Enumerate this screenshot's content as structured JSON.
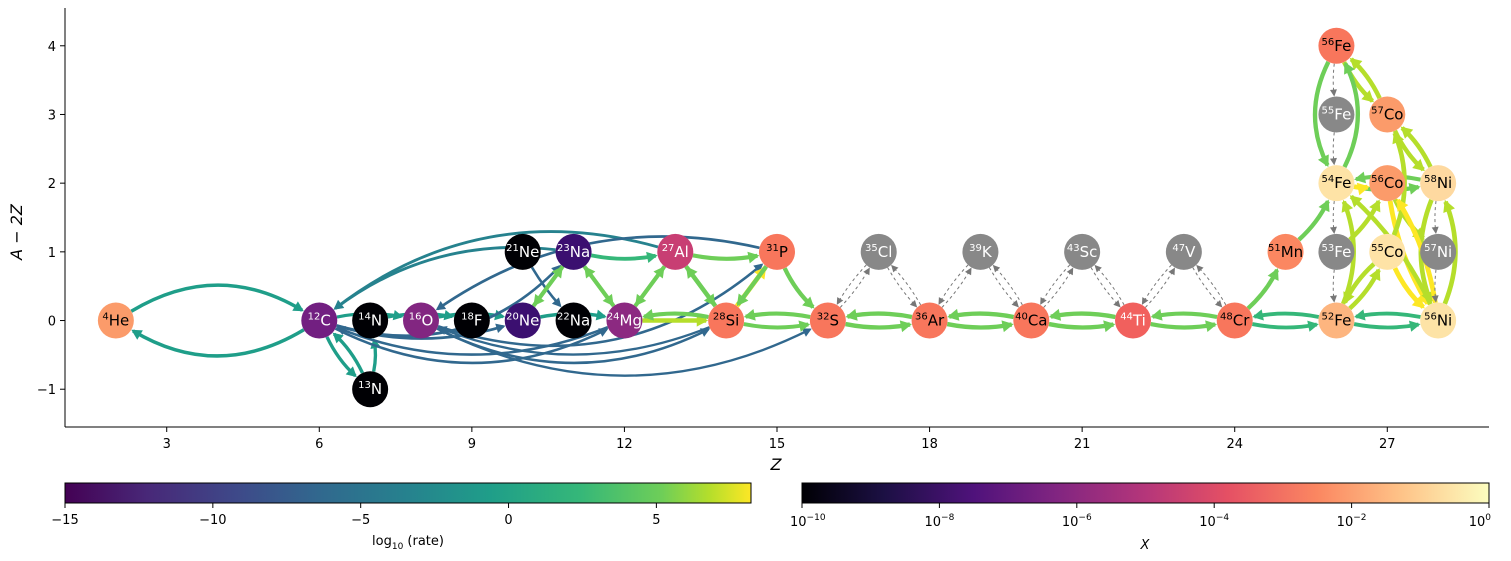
{
  "chart_data": {
    "type": "network",
    "xlabel": "Z",
    "ylabel": "A − 2Z",
    "xlim": [
      1.0,
      29.0
    ],
    "ylim": [
      -1.55,
      4.55
    ],
    "xticks": [
      3,
      6,
      9,
      12,
      15,
      18,
      21,
      24,
      27
    ],
    "yticks": [
      -1,
      0,
      1,
      2,
      3,
      4
    ],
    "nodes": [
      {
        "id": "he4",
        "mass": "4",
        "sym": "He",
        "z": 2,
        "n": 0,
        "color": "#fb9b6a",
        "text": "#000000"
      },
      {
        "id": "c12",
        "mass": "12",
        "sym": "C",
        "z": 6,
        "n": 0,
        "color": "#721f81",
        "text": "#ffffff"
      },
      {
        "id": "n13",
        "mass": "13",
        "sym": "N",
        "z": 7,
        "n": -1,
        "color": "#000004",
        "text": "#ffffff"
      },
      {
        "id": "n14",
        "mass": "14",
        "sym": "N",
        "z": 7,
        "n": 0,
        "color": "#000004",
        "text": "#ffffff"
      },
      {
        "id": "o16",
        "mass": "16",
        "sym": "O",
        "z": 8,
        "n": 0,
        "color": "#822681",
        "text": "#ffffff"
      },
      {
        "id": "f18",
        "mass": "18",
        "sym": "F",
        "z": 9,
        "n": 0,
        "color": "#000004",
        "text": "#ffffff"
      },
      {
        "id": "ne20",
        "mass": "20",
        "sym": "Ne",
        "z": 10,
        "n": 0,
        "color": "#3b0f70",
        "text": "#ffffff"
      },
      {
        "id": "ne21",
        "mass": "21",
        "sym": "Ne",
        "z": 10,
        "n": 1,
        "color": "#000004",
        "text": "#ffffff"
      },
      {
        "id": "na22",
        "mass": "22",
        "sym": "Na",
        "z": 11,
        "n": 0,
        "color": "#000004",
        "text": "#ffffff"
      },
      {
        "id": "na23",
        "mass": "23",
        "sym": "Na",
        "z": 11,
        "n": 1,
        "color": "#3b0f70",
        "text": "#ffffff"
      },
      {
        "id": "mg24",
        "mass": "24",
        "sym": "Mg",
        "z": 12,
        "n": 0,
        "color": "#8c2981",
        "text": "#ffffff"
      },
      {
        "id": "al27",
        "mass": "27",
        "sym": "Al",
        "z": 13,
        "n": 1,
        "color": "#c83e73",
        "text": "#ffffff"
      },
      {
        "id": "si28",
        "mass": "28",
        "sym": "Si",
        "z": 14,
        "n": 0,
        "color": "#f8765c",
        "text": "#000000"
      },
      {
        "id": "p31",
        "mass": "31",
        "sym": "P",
        "z": 15,
        "n": 1,
        "color": "#f8765c",
        "text": "#000000"
      },
      {
        "id": "s32",
        "mass": "32",
        "sym": "S",
        "z": 16,
        "n": 0,
        "color": "#f8765c",
        "text": "#000000"
      },
      {
        "id": "cl35",
        "mass": "35",
        "sym": "Cl",
        "z": 17,
        "n": 1,
        "color": "#888888",
        "text": "#ffffff"
      },
      {
        "id": "ar36",
        "mass": "36",
        "sym": "Ar",
        "z": 18,
        "n": 0,
        "color": "#f8765c",
        "text": "#000000"
      },
      {
        "id": "k39",
        "mass": "39",
        "sym": "K",
        "z": 19,
        "n": 1,
        "color": "#888888",
        "text": "#ffffff"
      },
      {
        "id": "ca40",
        "mass": "40",
        "sym": "Ca",
        "z": 20,
        "n": 0,
        "color": "#f8765c",
        "text": "#000000"
      },
      {
        "id": "sc43",
        "mass": "43",
        "sym": "Sc",
        "z": 21,
        "n": 1,
        "color": "#888888",
        "text": "#ffffff"
      },
      {
        "id": "ti44",
        "mass": "44",
        "sym": "Ti",
        "z": 22,
        "n": 0,
        "color": "#f1605d",
        "text": "#ffffff"
      },
      {
        "id": "v47",
        "mass": "47",
        "sym": "V",
        "z": 23,
        "n": 1,
        "color": "#888888",
        "text": "#ffffff"
      },
      {
        "id": "cr48",
        "mass": "48",
        "sym": "Cr",
        "z": 24,
        "n": 0,
        "color": "#f8765c",
        "text": "#000000"
      },
      {
        "id": "mn51",
        "mass": "51",
        "sym": "Mn",
        "z": 25,
        "n": 1,
        "color": "#fb8761",
        "text": "#000000"
      },
      {
        "id": "fe52",
        "mass": "52",
        "sym": "Fe",
        "z": 26,
        "n": 0,
        "color": "#fdb57f",
        "text": "#000000"
      },
      {
        "id": "fe53",
        "mass": "53",
        "sym": "Fe",
        "z": 26,
        "n": 1,
        "color": "#888888",
        "text": "#ffffff"
      },
      {
        "id": "fe54",
        "mass": "54",
        "sym": "Fe",
        "z": 26,
        "n": 2,
        "color": "#fee3a6",
        "text": "#000000"
      },
      {
        "id": "fe55",
        "mass": "55",
        "sym": "Fe",
        "z": 26,
        "n": 3,
        "color": "#888888",
        "text": "#ffffff"
      },
      {
        "id": "fe56",
        "mass": "56",
        "sym": "Fe",
        "z": 26,
        "n": 4,
        "color": "#f8765c",
        "text": "#000000"
      },
      {
        "id": "co55",
        "mass": "55",
        "sym": "Co",
        "z": 27,
        "n": 1,
        "color": "#fee3a6",
        "text": "#000000"
      },
      {
        "id": "co56",
        "mass": "56",
        "sym": "Co",
        "z": 27,
        "n": 2,
        "color": "#fb9b6a",
        "text": "#000000"
      },
      {
        "id": "co57",
        "mass": "57",
        "sym": "Co",
        "z": 27,
        "n": 3,
        "color": "#fb9b6a",
        "text": "#000000"
      },
      {
        "id": "ni56",
        "mass": "56",
        "sym": "Ni",
        "z": 28,
        "n": 0,
        "color": "#fde3a6",
        "text": "#000000"
      },
      {
        "id": "ni57",
        "mass": "57",
        "sym": "Ni",
        "z": 28,
        "n": 1,
        "color": "#888888",
        "text": "#ffffff"
      },
      {
        "id": "ni58",
        "mass": "58",
        "sym": "Ni",
        "z": 28,
        "n": 2,
        "color": "#fed9a0",
        "text": "#000000"
      }
    ],
    "edges": [
      {
        "from": "he4",
        "to": "c12",
        "rate": -1,
        "curve": -0.3
      },
      {
        "from": "c12",
        "to": "he4",
        "rate": -1,
        "curve": -0.3
      },
      {
        "from": "c12",
        "to": "n13",
        "rate": -1.5,
        "curve": 0.1
      },
      {
        "from": "n13",
        "to": "c12",
        "rate": -1.5,
        "curve": 0.1
      },
      {
        "from": "n13",
        "to": "n14",
        "rate": -2,
        "curve": 0.1
      },
      {
        "from": "c12",
        "to": "o16",
        "rate": -3,
        "curve": -0.1
      },
      {
        "from": "n14",
        "to": "f18",
        "rate": -3,
        "curve": -0.1
      },
      {
        "from": "o16",
        "to": "ne20",
        "rate": -2,
        "curve": -0.1
      },
      {
        "from": "c12",
        "to": "ne20",
        "rate": -6,
        "curve": 0.15
      },
      {
        "from": "c12",
        "to": "na23",
        "rate": -6,
        "curve": 0.3
      },
      {
        "from": "c12",
        "to": "mg24",
        "rate": -7,
        "curve": 0.25
      },
      {
        "from": "o16",
        "to": "si28",
        "rate": -7,
        "curve": 0.25
      },
      {
        "from": "o16",
        "to": "p31",
        "rate": -7,
        "curve": 0.28
      },
      {
        "from": "o16",
        "to": "s32",
        "rate": -8,
        "curve": 0.25
      },
      {
        "from": "na23",
        "to": "c12",
        "rate": -5,
        "curve": 0.2
      },
      {
        "from": "al27",
        "to": "c12",
        "rate": -5,
        "curve": 0.25
      },
      {
        "from": "p31",
        "to": "o16",
        "rate": -6,
        "curve": 0.22
      },
      {
        "from": "mg24",
        "to": "c12",
        "rate": -7,
        "curve": -0.2
      },
      {
        "from": "si28",
        "to": "o16",
        "rate": -8,
        "curve": -0.2
      },
      {
        "from": "ne21",
        "to": "na22",
        "rate": -7,
        "curve": 0.05
      },
      {
        "from": "ne20",
        "to": "na23",
        "rate": 2,
        "curve": 0.0
      },
      {
        "from": "na23",
        "to": "ne20",
        "rate": 2,
        "curve": 0.0
      },
      {
        "from": "ne20",
        "to": "mg24",
        "rate": -1,
        "curve": -0.1
      },
      {
        "from": "na23",
        "to": "mg24",
        "rate": 2,
        "curve": 0.0
      },
      {
        "from": "mg24",
        "to": "na23",
        "rate": 2,
        "curve": 0.0
      },
      {
        "from": "na23",
        "to": "al27",
        "rate": 1,
        "curve": 0.1
      },
      {
        "from": "mg24",
        "to": "al27",
        "rate": 2,
        "curve": 0.0
      },
      {
        "from": "al27",
        "to": "mg24",
        "rate": 2,
        "curve": 0.0
      },
      {
        "from": "mg24",
        "to": "si28",
        "rate": 5,
        "curve": 0.0
      },
      {
        "from": "si28",
        "to": "mg24",
        "rate": 3,
        "curve": 0.1
      },
      {
        "from": "al27",
        "to": "si28",
        "rate": 4,
        "curve": 0.0
      },
      {
        "from": "si28",
        "to": "al27",
        "rate": 4,
        "curve": 0.0
      },
      {
        "from": "al27",
        "to": "p31",
        "rate": 3,
        "curve": 0.1
      },
      {
        "from": "si28",
        "to": "p31",
        "rate": 7,
        "curve": 0.0
      },
      {
        "from": "p31",
        "to": "si28",
        "rate": 4,
        "curve": 0.0
      },
      {
        "from": "si28",
        "to": "s32",
        "rate": 2,
        "curve": 0.1
      },
      {
        "from": "s32",
        "to": "si28",
        "rate": 3,
        "curve": 0.1
      },
      {
        "from": "p31",
        "to": "s32",
        "rate": 4,
        "curve": 0.1
      },
      {
        "from": "s32",
        "to": "ar36",
        "rate": 4,
        "curve": 0.1
      },
      {
        "from": "ar36",
        "to": "s32",
        "rate": 4,
        "curve": 0.1
      },
      {
        "from": "ar36",
        "to": "ca40",
        "rate": 4,
        "curve": 0.1
      },
      {
        "from": "ca40",
        "to": "ar36",
        "rate": 4,
        "curve": 0.1
      },
      {
        "from": "ca40",
        "to": "ti44",
        "rate": 4,
        "curve": 0.1
      },
      {
        "from": "ti44",
        "to": "ca40",
        "rate": 4,
        "curve": 0.1
      },
      {
        "from": "ti44",
        "to": "cr48",
        "rate": 3,
        "curve": 0.1
      },
      {
        "from": "cr48",
        "to": "ti44",
        "rate": 3,
        "curve": 0.1
      },
      {
        "from": "cr48",
        "to": "fe52",
        "rate": 1,
        "curve": 0.1
      },
      {
        "from": "fe52",
        "to": "cr48",
        "rate": 1,
        "curve": 0.1
      },
      {
        "from": "fe52",
        "to": "ni56",
        "rate": 1,
        "curve": 0.1
      },
      {
        "from": "ni56",
        "to": "fe52",
        "rate": 1,
        "curve": 0.1
      },
      {
        "from": "cr48",
        "to": "mn51",
        "rate": 4,
        "curve": 0.1
      },
      {
        "from": "mn51",
        "to": "fe54",
        "rate": 4,
        "curve": 0.1
      },
      {
        "from": "fe52",
        "to": "co55",
        "rate": 5,
        "curve": 0.1
      },
      {
        "from": "co55",
        "to": "fe52",
        "rate": 5,
        "curve": 0.1
      },
      {
        "from": "fe54",
        "to": "ni58",
        "rate": 3,
        "curve": 0.1
      },
      {
        "from": "ni58",
        "to": "fe54",
        "rate": 3,
        "curve": 0.1
      },
      {
        "from": "fe54",
        "to": "co56",
        "rate": 7,
        "curve": 0.1
      },
      {
        "from": "co56",
        "to": "ni56",
        "rate": 7,
        "curve": 0.1
      },
      {
        "from": "co55",
        "to": "ni56",
        "rate": 7,
        "curve": 0.1
      },
      {
        "from": "fe56",
        "to": "co57",
        "rate": 5,
        "curve": 0.1
      },
      {
        "from": "co57",
        "to": "fe56",
        "rate": 5,
        "curve": 0.1
      },
      {
        "from": "co57",
        "to": "ni58",
        "rate": 5,
        "curve": 0.1
      },
      {
        "from": "ni58",
        "to": "co57",
        "rate": 5,
        "curve": 0.1
      },
      {
        "from": "fe53",
        "to": "co56",
        "rate": 5,
        "curve": 0.1
      },
      {
        "from": "co56",
        "to": "ni57",
        "rate": 6,
        "curve": 0.1
      },
      {
        "from": "ni56",
        "to": "fe54",
        "rate": 5,
        "curve": 0.1
      },
      {
        "from": "fe52",
        "to": "fe54",
        "rate": 5,
        "curve": 0.2
      },
      {
        "from": "fe54",
        "to": "fe56",
        "rate": 4,
        "curve": 0.25
      },
      {
        "from": "fe56",
        "to": "fe54",
        "rate": 4,
        "curve": 0.25
      },
      {
        "from": "ni56",
        "to": "ni58",
        "rate": 6,
        "curve": 0.2
      },
      {
        "from": "ni58",
        "to": "ni56",
        "rate": 6,
        "curve": 0.2
      },
      {
        "from": "co55",
        "to": "co57",
        "rate": 6,
        "curve": 0.2
      },
      {
        "from": "ni56",
        "to": "co56",
        "rate": 7,
        "curve": 0.1
      }
    ],
    "weak_edges": [
      {
        "from": "cl35",
        "to": "s32"
      },
      {
        "from": "s32",
        "to": "cl35"
      },
      {
        "from": "cl35",
        "to": "ar36"
      },
      {
        "from": "ar36",
        "to": "cl35"
      },
      {
        "from": "k39",
        "to": "ar36"
      },
      {
        "from": "ar36",
        "to": "k39"
      },
      {
        "from": "k39",
        "to": "ca40"
      },
      {
        "from": "ca40",
        "to": "k39"
      },
      {
        "from": "sc43",
        "to": "ca40"
      },
      {
        "from": "ca40",
        "to": "sc43"
      },
      {
        "from": "sc43",
        "to": "ti44"
      },
      {
        "from": "ti44",
        "to": "sc43"
      },
      {
        "from": "v47",
        "to": "ti44"
      },
      {
        "from": "ti44",
        "to": "v47"
      },
      {
        "from": "v47",
        "to": "cr48"
      },
      {
        "from": "cr48",
        "to": "v47"
      },
      {
        "from": "fe56",
        "to": "fe55"
      },
      {
        "from": "fe55",
        "to": "fe54"
      },
      {
        "from": "fe54",
        "to": "fe53"
      },
      {
        "from": "fe53",
        "to": "fe52"
      },
      {
        "from": "ni58",
        "to": "ni57"
      },
      {
        "from": "ni57",
        "to": "ni56"
      }
    ],
    "colorbars": [
      {
        "name": "rate",
        "label_text": "log",
        "label_sub": "10",
        "label_tail": " (rate)",
        "ticks": [
          "−15",
          "−10",
          "−5",
          "0",
          "5"
        ],
        "tick_values": [
          -15,
          -10,
          -5,
          0,
          5
        ],
        "range": [
          -15,
          8.2
        ],
        "cmap": "viridis"
      },
      {
        "name": "abundance",
        "label_text": "X",
        "ticks": [
          [
            "10",
            "−10"
          ],
          [
            "10",
            "−8"
          ],
          [
            "10",
            "−6"
          ],
          [
            "10",
            "−4"
          ],
          [
            "10",
            "−2"
          ],
          [
            "10",
            "0"
          ]
        ],
        "tick_values": [
          -10,
          -8,
          -6,
          -4,
          -2,
          0
        ],
        "range": [
          -10,
          0
        ],
        "cmap": "magma"
      }
    ]
  }
}
